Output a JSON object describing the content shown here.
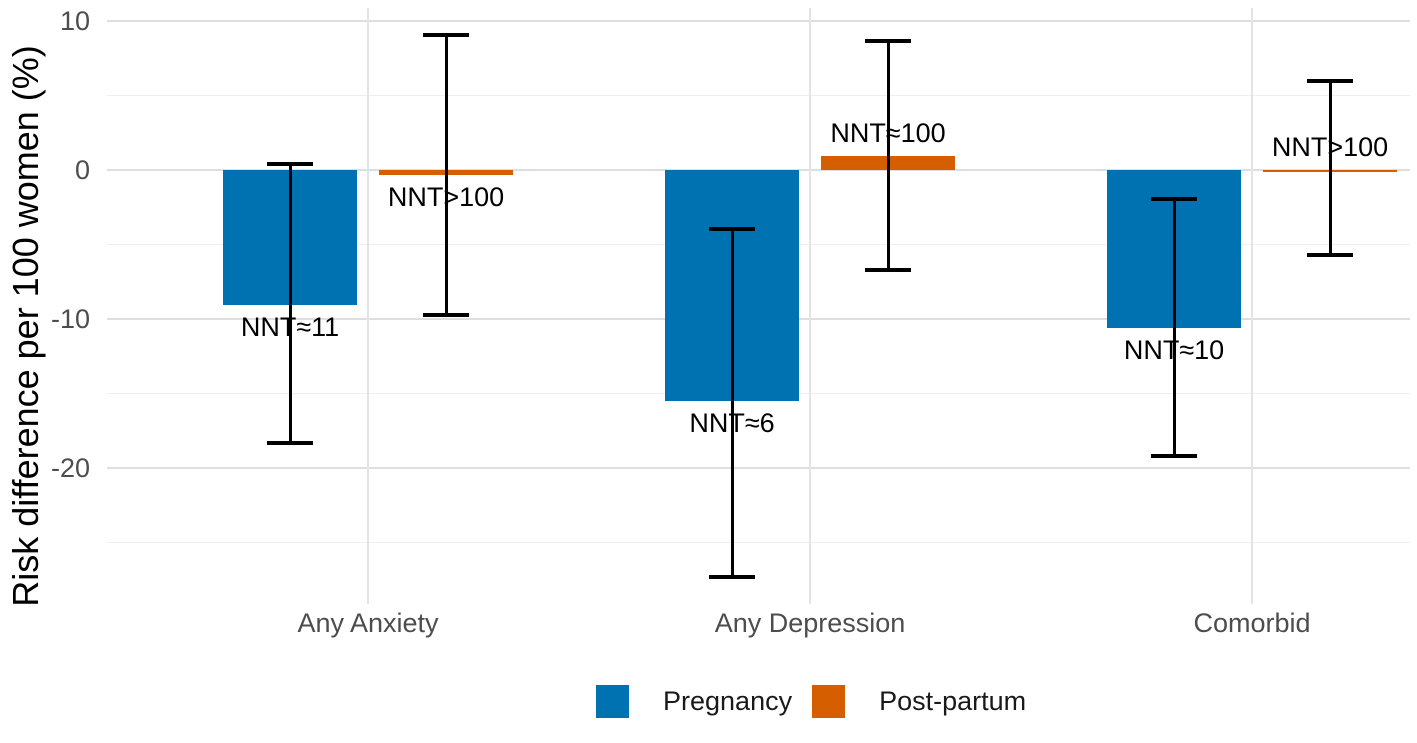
{
  "chart_data": {
    "type": "bar",
    "title": "",
    "xlabel": "",
    "ylabel": "Risk difference per 100 women (%)",
    "categories": [
      "Any Anxiety",
      "Any Depression",
      "Comorbid"
    ],
    "series": [
      {
        "name": "Pregnancy",
        "color": "#0072B2",
        "values": [
          -9.0,
          -15.5,
          -10.6
        ],
        "ci_low": [
          -18.3,
          -27.3,
          -19.2
        ],
        "ci_high": [
          0.4,
          -3.9,
          -1.9
        ],
        "point_labels": [
          "NNT≈11",
          "NNT≈6",
          "NNT≈10"
        ],
        "label_side": [
          "below",
          "below",
          "below"
        ]
      },
      {
        "name": "Post-partum",
        "color": "#D55E00",
        "values": [
          -0.3,
          1.0,
          -0.1
        ],
        "ci_low": [
          -9.7,
          -6.7,
          -5.7
        ],
        "ci_high": [
          9.1,
          8.7,
          6.0
        ],
        "point_labels": [
          "NNT>100",
          "NNT≈100",
          "NNT>100"
        ],
        "label_side": [
          "below",
          "above",
          "above"
        ]
      }
    ],
    "y_axis": {
      "tick_values": [
        10,
        0,
        -10,
        -20
      ],
      "tick_labels": [
        "10",
        "0",
        "-10",
        "-20"
      ],
      "minor_gridline_values": [
        5,
        -5,
        -15,
        -25
      ],
      "ylim": [
        -29.1,
        10.9
      ]
    },
    "bar_baseline": 0,
    "grid": true,
    "error_bars": true,
    "legend_position": "bottom",
    "legend_entries": [
      "Pregnancy",
      "Post-partum"
    ]
  },
  "colors": {
    "pregnancy": "#0072B2",
    "post_partum": "#D55E00",
    "grid_major": "#dedede",
    "grid_minor": "#efefef",
    "axis_text": "#4d4d4d",
    "annotation_text": "#000000",
    "error_bar": "#000000",
    "background": "#ffffff"
  }
}
